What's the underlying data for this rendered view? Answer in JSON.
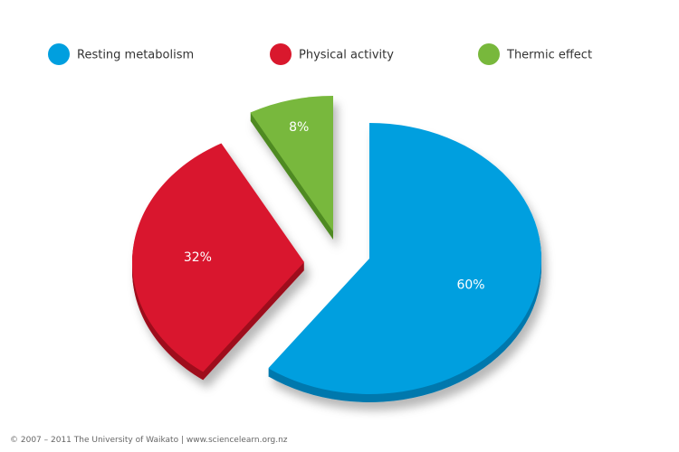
{
  "chart_data": {
    "type": "pie",
    "title": "",
    "slices": [
      {
        "label": "Resting metabolism",
        "value": 60,
        "value_label": "60%",
        "color": "#009FDF",
        "side_color": "#0078AD"
      },
      {
        "label": "Physical activity",
        "value": 32,
        "value_label": "32%",
        "color": "#D9182D",
        "side_color": "#9E0E1E"
      },
      {
        "label": "Thermic effect",
        "value": 8,
        "value_label": "8%",
        "color": "#78B83C",
        "side_color": "#4F8A22"
      }
    ],
    "legend_position": "top",
    "exploded": true
  },
  "footer": {
    "copyright": "© 2007 – 2011 The University of Waikato | www.sciencelearn.org.nz"
  }
}
